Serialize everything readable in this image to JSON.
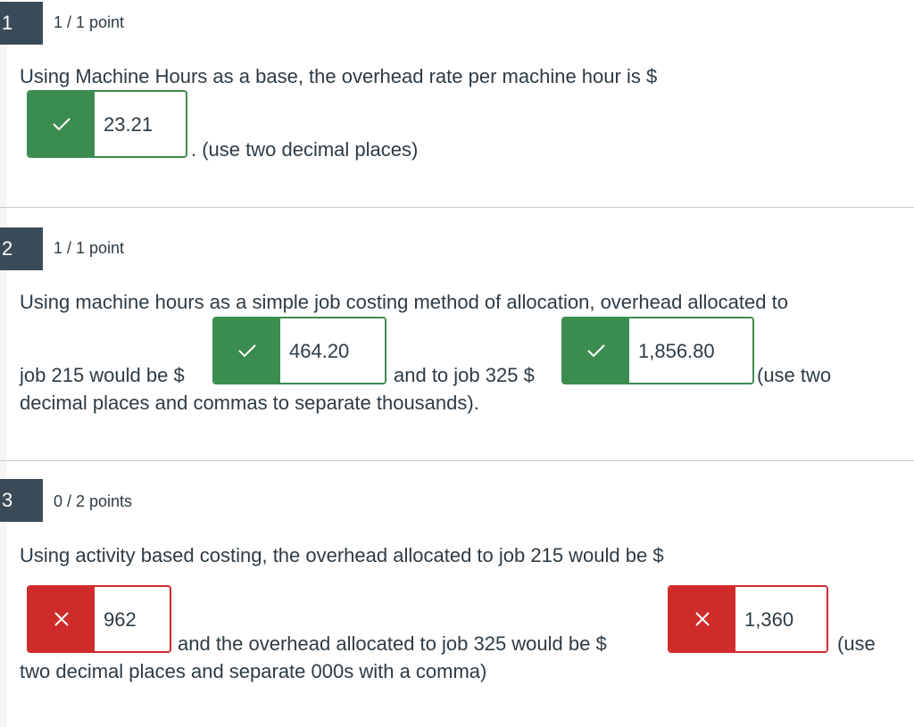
{
  "questions": [
    {
      "number": "1",
      "points": "1 / 1 point",
      "prompt": "Using Machine Hours as a base, the overhead rate per machine hour is $",
      "answer1": "23.21",
      "after": ". (use two decimal places)"
    },
    {
      "number": "2",
      "points": "1 / 1 point",
      "prompt": "Using machine hours as a simple job costing method of allocation, overhead allocated to",
      "line2a": "job 215 would be $",
      "answer1": "464.20",
      "line2b": "and to job 325 $",
      "answer2": "1,856.80",
      "line2c": "(use two",
      "line3": "decimal places and commas to separate thousands)."
    },
    {
      "number": "3",
      "points": "0 / 2 points",
      "prompt": "Using activity based costing, the overhead allocated to job 215 would be $",
      "answer1": "962",
      "line2a": "and the overhead allocated to job 325 would be $",
      "answer2": "1,360",
      "line2b": "(use",
      "line3": "two decimal places and separate 000s with a comma)"
    }
  ],
  "colors": {
    "correct": "#3b8d4f",
    "wrong": "#d02b2b",
    "badge": "#394b58"
  },
  "icons": {
    "correct": "checkmark-icon",
    "wrong": "x-icon"
  }
}
